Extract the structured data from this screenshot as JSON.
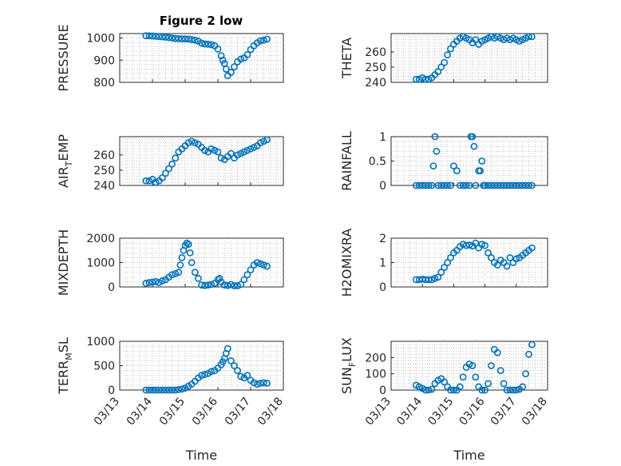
{
  "figure_title": "Figure 2 low",
  "marker_color": "#0072BD",
  "x_ticks": [
    {
      "value": 0,
      "label": "03/13"
    },
    {
      "value": 1,
      "label": "03/14"
    },
    {
      "value": 2,
      "label": "03/15"
    },
    {
      "value": 3,
      "label": "03/16"
    },
    {
      "value": 4,
      "label": "03/17"
    },
    {
      "value": 5,
      "label": "03/18"
    }
  ],
  "chart_data": [
    {
      "type": "scatter",
      "id": "pressure",
      "ylabel": "PRESSURE",
      "xlabel": "",
      "title": "Figure 2 low",
      "xlim": [
        0,
        5
      ],
      "ylim": [
        800,
        1020
      ],
      "yticks": [
        800,
        900,
        1000
      ],
      "grid": true,
      "x": [
        0.8,
        0.9,
        1.0,
        1.1,
        1.2,
        1.3,
        1.4,
        1.5,
        1.6,
        1.7,
        1.8,
        1.9,
        2.0,
        2.1,
        2.2,
        2.3,
        2.4,
        2.5,
        2.6,
        2.7,
        2.8,
        2.9,
        3.0,
        3.1,
        3.15,
        3.2,
        3.25,
        3.3,
        3.4,
        3.5,
        3.6,
        3.7,
        3.8,
        3.9,
        4.0,
        4.1,
        4.2,
        4.3,
        4.4,
        4.5
      ],
      "y": [
        1010,
        1010,
        1009,
        1008,
        1007,
        1005,
        1004,
        1002,
        1000,
        998,
        997,
        996,
        996,
        995,
        993,
        990,
        986,
        977,
        973,
        972,
        970,
        965,
        950,
        920,
        900,
        885,
        860,
        830,
        845,
        870,
        893,
        905,
        910,
        925,
        948,
        965,
        978,
        987,
        990,
        995
      ]
    },
    {
      "type": "scatter",
      "id": "theta",
      "ylabel": "THETA",
      "xlabel": "",
      "xlim": [
        0,
        5
      ],
      "ylim": [
        240,
        272
      ],
      "yticks": [
        240,
        250,
        260
      ],
      "grid": true,
      "x": [
        0.8,
        0.9,
        1.0,
        1.1,
        1.2,
        1.3,
        1.4,
        1.5,
        1.6,
        1.7,
        1.8,
        1.9,
        2.0,
        2.1,
        2.2,
        2.3,
        2.4,
        2.5,
        2.6,
        2.7,
        2.8,
        2.9,
        3.0,
        3.1,
        3.2,
        3.3,
        3.4,
        3.5,
        3.6,
        3.7,
        3.8,
        3.9,
        4.0,
        4.1,
        4.2,
        4.3,
        4.4,
        4.5
      ],
      "y": [
        242,
        242,
        243,
        242,
        242,
        243,
        245,
        247,
        250,
        253,
        258,
        262,
        265,
        267,
        269,
        270,
        269,
        268,
        266,
        268,
        265,
        267,
        268,
        269,
        270,
        269,
        270,
        269,
        268,
        269,
        268,
        269,
        268,
        267,
        268,
        269,
        270,
        270
      ]
    },
    {
      "type": "scatter",
      "id": "air_temp",
      "ylabel": "AIR",
      "ylabel_sub": "T",
      "ylabel_tail": "EMP",
      "xlabel": "",
      "xlim": [
        0,
        5
      ],
      "ylim": [
        240,
        272
      ],
      "yticks": [
        240,
        250,
        260
      ],
      "grid": true,
      "x": [
        0.8,
        0.9,
        1.0,
        1.1,
        1.2,
        1.3,
        1.4,
        1.5,
        1.6,
        1.7,
        1.8,
        1.9,
        2.0,
        2.1,
        2.2,
        2.3,
        2.4,
        2.5,
        2.6,
        2.7,
        2.8,
        2.9,
        3.0,
        3.1,
        3.2,
        3.3,
        3.4,
        3.5,
        3.6,
        3.7,
        3.8,
        3.9,
        4.0,
        4.1,
        4.2,
        4.3,
        4.4,
        4.5
      ],
      "y": [
        243,
        243,
        244,
        242,
        243,
        245,
        248,
        251,
        254,
        258,
        262,
        264,
        266,
        268,
        269,
        268,
        267,
        265,
        263,
        262,
        264,
        263,
        262,
        258,
        257,
        259,
        261,
        258,
        260,
        261,
        262,
        263,
        264,
        265,
        266,
        268,
        269,
        270
      ]
    },
    {
      "type": "scatter",
      "id": "rainfall",
      "ylabel": "RAINFALL",
      "xlabel": "",
      "xlim": [
        0,
        5
      ],
      "ylim": [
        0,
        1
      ],
      "yticks": [
        0,
        0.5,
        1
      ],
      "grid": true,
      "x": [
        0.8,
        0.9,
        1.0,
        1.1,
        1.2,
        1.3,
        1.35,
        1.4,
        1.45,
        1.5,
        1.6,
        1.7,
        1.8,
        1.9,
        2.0,
        2.1,
        2.2,
        2.3,
        2.4,
        2.5,
        2.55,
        2.6,
        2.65,
        2.7,
        2.8,
        2.85,
        2.9,
        2.95,
        3.0,
        3.1,
        3.2,
        3.3,
        3.4,
        3.5,
        3.6,
        3.7,
        3.8,
        3.9,
        4.0,
        4.1,
        4.2,
        4.3,
        4.4,
        4.5
      ],
      "y": [
        0,
        0,
        0,
        0,
        0,
        0,
        0.4,
        1,
        0.7,
        0,
        0,
        0,
        0,
        0,
        0.4,
        0.3,
        0,
        0,
        0,
        0,
        1,
        1,
        0.8,
        0,
        0.3,
        0.3,
        0.5,
        0,
        0,
        0,
        0,
        0,
        0,
        0,
        0,
        0,
        0,
        0,
        0,
        0,
        0,
        0,
        0,
        0
      ]
    },
    {
      "type": "scatter",
      "id": "mixdepth",
      "ylabel": "MIXDEPTH",
      "xlabel": "",
      "xlim": [
        0,
        5
      ],
      "ylim": [
        0,
        2000
      ],
      "yticks": [
        0,
        1000,
        2000
      ],
      "grid": true,
      "x": [
        0.8,
        0.9,
        1.0,
        1.1,
        1.2,
        1.3,
        1.4,
        1.5,
        1.6,
        1.7,
        1.8,
        1.85,
        1.9,
        1.95,
        2.0,
        2.05,
        2.1,
        2.15,
        2.2,
        2.3,
        2.4,
        2.5,
        2.6,
        2.7,
        2.8,
        2.9,
        3.0,
        3.05,
        3.1,
        3.2,
        3.3,
        3.4,
        3.5,
        3.6,
        3.7,
        3.8,
        3.9,
        4.0,
        4.1,
        4.2,
        4.3,
        4.4,
        4.5
      ],
      "y": [
        150,
        180,
        200,
        220,
        180,
        250,
        300,
        400,
        500,
        550,
        600,
        900,
        1200,
        1500,
        1700,
        1800,
        1750,
        1400,
        1000,
        600,
        350,
        80,
        60,
        80,
        100,
        150,
        300,
        350,
        200,
        80,
        60,
        100,
        50,
        50,
        100,
        300,
        500,
        700,
        900,
        1000,
        950,
        900,
        850
      ]
    },
    {
      "type": "scatter",
      "id": "h2omixra",
      "ylabel": "H2OMIXRA",
      "xlabel": "",
      "xlim": [
        0,
        5
      ],
      "ylim": [
        0,
        2
      ],
      "yticks": [
        0,
        1,
        2
      ],
      "grid": true,
      "x": [
        0.8,
        0.9,
        1.0,
        1.1,
        1.2,
        1.3,
        1.4,
        1.5,
        1.6,
        1.7,
        1.8,
        1.9,
        2.0,
        2.1,
        2.2,
        2.3,
        2.4,
        2.5,
        2.6,
        2.7,
        2.8,
        2.9,
        3.0,
        3.1,
        3.2,
        3.3,
        3.4,
        3.5,
        3.6,
        3.7,
        3.8,
        3.9,
        4.0,
        4.1,
        4.2,
        4.3,
        4.4,
        4.5
      ],
      "y": [
        0.3,
        0.3,
        0.32,
        0.3,
        0.3,
        0.3,
        0.35,
        0.4,
        0.6,
        0.8,
        1.0,
        1.2,
        1.4,
        1.5,
        1.65,
        1.75,
        1.7,
        1.72,
        1.68,
        1.8,
        1.6,
        1.75,
        1.7,
        1.4,
        1.2,
        1.0,
        0.9,
        1.1,
        1.0,
        0.85,
        1.2,
        1.0,
        1.15,
        1.2,
        1.3,
        1.4,
        1.5,
        1.6
      ]
    },
    {
      "type": "scatter",
      "id": "terr_msl",
      "ylabel": "TERR",
      "ylabel_sub": "M",
      "ylabel_tail": "SL",
      "xlabel": "Time",
      "xlim": [
        0,
        5
      ],
      "ylim": [
        0,
        1000
      ],
      "yticks": [
        0,
        500,
        1000
      ],
      "grid": true,
      "x": [
        0.8,
        0.9,
        1.0,
        1.1,
        1.2,
        1.3,
        1.4,
        1.5,
        1.6,
        1.7,
        1.8,
        1.9,
        2.0,
        2.1,
        2.2,
        2.3,
        2.4,
        2.5,
        2.6,
        2.7,
        2.8,
        2.9,
        3.0,
        3.1,
        3.15,
        3.2,
        3.25,
        3.3,
        3.4,
        3.5,
        3.6,
        3.7,
        3.8,
        3.9,
        4.0,
        4.1,
        4.2,
        4.3,
        4.4,
        4.5
      ],
      "y": [
        0,
        0,
        0,
        0,
        0,
        0,
        0,
        0,
        0,
        0,
        10,
        20,
        40,
        80,
        120,
        180,
        250,
        300,
        320,
        340,
        380,
        400,
        450,
        520,
        580,
        650,
        750,
        850,
        600,
        500,
        400,
        280,
        250,
        300,
        200,
        150,
        120,
        140,
        150,
        140
      ]
    },
    {
      "type": "scatter",
      "id": "sun_flux",
      "ylabel": "SUN",
      "ylabel_sub": "F",
      "ylabel_tail": "LUX",
      "xlabel": "Time",
      "xlim": [
        0,
        5
      ],
      "ylim": [
        0,
        300
      ],
      "yticks": [
        0,
        100,
        200
      ],
      "grid": true,
      "x": [
        0.8,
        0.9,
        1.0,
        1.1,
        1.2,
        1.3,
        1.4,
        1.5,
        1.6,
        1.7,
        1.8,
        1.9,
        2.0,
        2.1,
        2.2,
        2.3,
        2.4,
        2.5,
        2.6,
        2.7,
        2.8,
        2.9,
        3.0,
        3.1,
        3.2,
        3.3,
        3.4,
        3.5,
        3.6,
        3.7,
        3.8,
        3.9,
        4.0,
        4.1,
        4.2,
        4.3,
        4.4,
        4.5
      ],
      "y": [
        30,
        20,
        10,
        0,
        0,
        5,
        40,
        60,
        70,
        50,
        20,
        0,
        0,
        0,
        20,
        80,
        140,
        160,
        150,
        80,
        20,
        0,
        0,
        40,
        150,
        250,
        230,
        120,
        40,
        0,
        0,
        0,
        0,
        5,
        20,
        100,
        220,
        280
      ]
    }
  ]
}
